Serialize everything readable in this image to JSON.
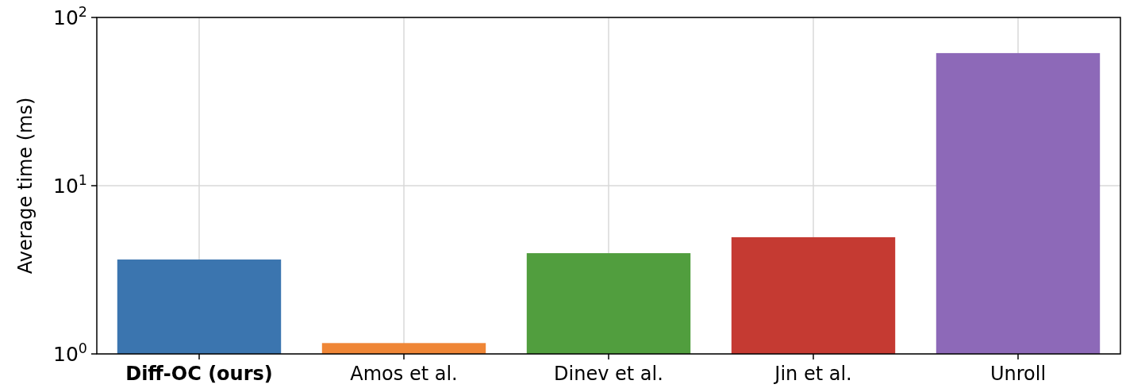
{
  "chart_data": {
    "type": "bar",
    "ylabel": "Average time (ms)",
    "categories": [
      "Diff-OC (ours)",
      "Amos et al.",
      "Dinev et al.",
      "Jin et al.",
      "Unroll"
    ],
    "values": [
      3.64,
      1.16,
      3.97,
      4.94,
      61.4
    ],
    "colors": [
      "#3b75af",
      "#ef8636",
      "#519e3e",
      "#c53a32",
      "#8d69b8"
    ],
    "log": true,
    "ylim": [
      1,
      100
    ],
    "yticks": [
      {
        "value": 1,
        "label": "10$^{0}$"
      },
      {
        "value": 10,
        "label": "10$^{1}$"
      },
      {
        "value": 100,
        "label": "10$^{2}$"
      }
    ],
    "grid": true
  }
}
